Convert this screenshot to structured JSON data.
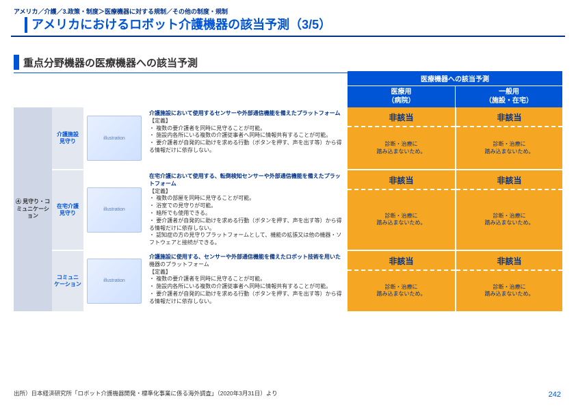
{
  "breadcrumb": "アメリカ／介護／3.政策・制度＞医療機器に対する規制／その他の制度・規制",
  "title": "アメリカにおけるロボット介護機器の該当予測（3/5）",
  "subtitle": "重点分野機器の医療機器への該当予測",
  "table": {
    "pred_header": "医療機器への該当予測",
    "col1": "医療用\n（病院）",
    "col2": "一般用\n（施設・在宅）",
    "category": "④ 見守り・コミュニケーション",
    "rows": [
      {
        "name": "介護施設\n見守り",
        "img_alt": "illustration",
        "lead": "介護施設において使用するセンサーや外部通信機能を備えたプラットフォーム",
        "body": "【定義】\n・ 複数の要介護者を同時に見守ることが可能。\n・ 施設内各所にいる複数の介護従事者へ同時に情報共有することが可能。\n・ 要介護者が自発的に助けを求める行動（ボタンを押す、声を出す等）から得る情報だけに依存しない。",
        "status1": "非該当",
        "reason1": "診断・治療に\n踏み込まないため。",
        "status2": "非該当",
        "reason2": "診断・治療に\n踏み込まないため。"
      },
      {
        "name": "在宅介護\n見守り",
        "img_alt": "illustration",
        "lead": "在宅介護において使用する、転倒検知センサーや外部通信機能を備えたプラットフォーム",
        "body": "【定義】\n・ 複数の部屋を同時に見守ることが可能。\n・ 浴室での見守りが可能。\n・ 暗所でも使用できる。\n・ 要介護者が自発的に助けを求める行動（ボタンを押す、声を出す等）から得る情報だけに依存しない。\n・ 認知症の方の見守りプラットフォームとして、機能の拡張又は他の機器・ソフトウェアと接続ができる。",
        "status1": "非該当",
        "reason1": "診断・治療に\n踏み込まないため。",
        "status2": "非該当",
        "reason2": "診断・治療に\n踏み込まないため。"
      },
      {
        "name": "コミュニ\nケーション",
        "img_alt": "illustration",
        "lead": "介護施設に使用する、センサーや外部通信機能を備えたロボット技術を用いた",
        "body": "機器のプラットフォーム\n【定義】\n・ 複数の要介護者を同時に見守ることが可能。\n・ 施設内各所にいる複数の介護従事者へ同時に情報共有することが可能。\n・ 要介護者が自発的に助けを求める行動（ボタンを押す、声を出す等）から得る情報だけに依存しない。",
        "status1": "非該当",
        "reason1": "診断・治療に\n踏み込まないため。",
        "status2": "非該当",
        "reason2": "診断・治療に\n踏み込まないため。"
      }
    ]
  },
  "source": "出所）日本経済研究所「ロボット介護機器開発・標準化事業に係る海外調査」（2020年3月31日）より",
  "page": "242"
}
